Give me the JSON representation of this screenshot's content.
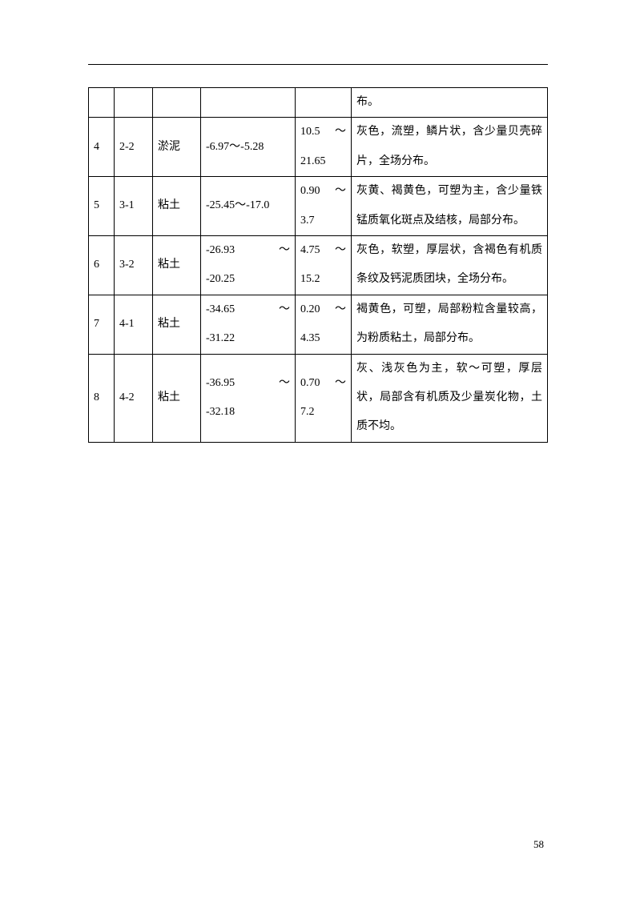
{
  "page_number": "58",
  "table": {
    "border_color": "#000000",
    "background_color": "#ffffff",
    "text_color": "#000000",
    "font_size": 14,
    "font_family": "SimSun",
    "rows": [
      {
        "c1": "",
        "c2": "",
        "c3": "",
        "c4": "",
        "c5": "",
        "c6": "布。"
      },
      {
        "c1": "4",
        "c2": "2-2",
        "c3": "淤泥",
        "c4": "-6.97～-5.28",
        "c5_line1_a": "10.5",
        "c5_line1_b": "～",
        "c5_line2": "21.65",
        "c6": "灰色，流塑，鳞片状，含少量贝壳碎片，全场分布。"
      },
      {
        "c1": "5",
        "c2": "3-1",
        "c3": "粘土",
        "c4": "-25.45～-17.0",
        "c5_line1_a": "0.90",
        "c5_line1_b": "～",
        "c5_line2": "3.7",
        "c6": "灰黄、褐黄色，可塑为主，含少量铁锰质氧化斑点及结核，局部分布。"
      },
      {
        "c1": "6",
        "c2": "3-2",
        "c3": "粘土",
        "c4_line1_a": "-26.93",
        "c4_line1_b": "～",
        "c4_line2": "-20.25",
        "c5_line1_a": "4.75",
        "c5_line1_b": "～",
        "c5_line2": "15.2",
        "c6": "灰色，软塑，厚层状，含褐色有机质条纹及钙泥质团块，全场分布。"
      },
      {
        "c1": "7",
        "c2": "4-1",
        "c3": "粘土",
        "c4_line1_a": "-34.65",
        "c4_line1_b": "～",
        "c4_line2": "-31.22",
        "c5_line1_a": "0.20",
        "c5_line1_b": "～",
        "c5_line2": "4.35",
        "c6": "褐黄色，可塑，局部粉粒含量较高，为粉质粘土，局部分布。"
      },
      {
        "c1": "8",
        "c2": "4-2",
        "c3": "粘土",
        "c4_line1_a": "-36.95",
        "c4_line1_b": "～",
        "c4_line2": "-32.18",
        "c5_line1_a": "0.70",
        "c5_line1_b": "～",
        "c5_line2": "7.2",
        "c6": "灰、浅灰色为主，软～可塑，厚层状，局部含有机质及少量炭化物，土质不均。"
      }
    ]
  }
}
